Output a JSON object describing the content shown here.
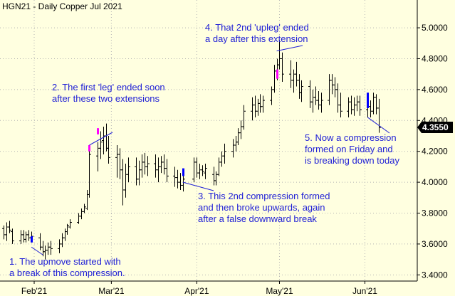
{
  "chart_data": {
    "type": "ohlc",
    "title": "HGN21 - Daily  Copper Jul 2021",
    "ylim": [
      3.36,
      5.18
    ],
    "xlim_days": [
      -12.4,
      139
    ],
    "y_ticks": [
      "5.0000",
      "4.8000",
      "4.6000",
      "4.4000",
      "4.2000",
      "4.0000",
      "3.8000",
      "3.6000",
      "3.4000"
    ],
    "x_ticks": [
      {
        "label": "Feb'21",
        "day": 0
      },
      {
        "label": "Mar'21",
        "day": 28
      },
      {
        "label": "Apr'21",
        "day": 59
      },
      {
        "label": "May'21",
        "day": 89
      },
      {
        "label": "Jun'21",
        "day": 120
      }
    ],
    "last_price": "4.3550",
    "colors": {
      "background": "#ffffe0",
      "bar": "#000000",
      "grid": "#b4b4b4",
      "annotation": "#1f1fd6",
      "extension": "#ff00ff",
      "compression": "#0000ff",
      "price_badge": "#000000"
    },
    "grid": true,
    "bars": [
      {
        "d": -11,
        "o": 3.7,
        "h": 3.72,
        "l": 3.63,
        "c": 3.66
      },
      {
        "d": -10,
        "o": 3.66,
        "h": 3.74,
        "l": 3.62,
        "c": 3.71
      },
      {
        "d": -9,
        "o": 3.71,
        "h": 3.75,
        "l": 3.67,
        "c": 3.69
      },
      {
        "d": -8,
        "o": 3.68,
        "h": 3.7,
        "l": 3.6,
        "c": 3.62
      },
      {
        "d": -5,
        "o": 3.62,
        "h": 3.69,
        "l": 3.6,
        "c": 3.66
      },
      {
        "d": -4,
        "o": 3.66,
        "h": 3.69,
        "l": 3.61,
        "c": 3.63
      },
      {
        "d": -3,
        "o": 3.63,
        "h": 3.68,
        "l": 3.61,
        "c": 3.66
      },
      {
        "d": -2,
        "o": 3.66,
        "h": 3.69,
        "l": 3.62,
        "c": 3.64
      },
      {
        "d": -1,
        "o": 3.64,
        "h": 3.68,
        "l": 3.61,
        "c": 3.65
      },
      {
        "d": 2,
        "o": 3.64,
        "h": 3.67,
        "l": 3.56,
        "c": 3.58
      },
      {
        "d": 3,
        "o": 3.58,
        "h": 3.62,
        "l": 3.52,
        "c": 3.55
      },
      {
        "d": 4,
        "o": 3.55,
        "h": 3.59,
        "l": 3.5,
        "c": 3.56
      },
      {
        "d": 5,
        "o": 3.56,
        "h": 3.61,
        "l": 3.53,
        "c": 3.58
      },
      {
        "d": 6,
        "o": 3.58,
        "h": 3.62,
        "l": 3.53,
        "c": 3.57
      },
      {
        "d": 9,
        "o": 3.57,
        "h": 3.63,
        "l": 3.54,
        "c": 3.6
      },
      {
        "d": 10,
        "o": 3.6,
        "h": 3.67,
        "l": 3.58,
        "c": 3.64
      },
      {
        "d": 11,
        "o": 3.64,
        "h": 3.7,
        "l": 3.62,
        "c": 3.68
      },
      {
        "d": 12,
        "o": 3.68,
        "h": 3.73,
        "l": 3.66,
        "c": 3.72
      },
      {
        "d": 13,
        "o": 3.71,
        "h": 3.76,
        "l": 3.7,
        "c": 3.74
      },
      {
        "d": 16,
        "o": 3.74,
        "h": 3.8,
        "l": 3.73,
        "c": 3.78
      },
      {
        "d": 17,
        "o": 3.78,
        "h": 3.83,
        "l": 3.76,
        "c": 3.81
      },
      {
        "d": 18,
        "o": 3.81,
        "h": 3.86,
        "l": 3.8,
        "c": 3.84
      },
      {
        "d": 19,
        "o": 3.83,
        "h": 3.95,
        "l": 3.82,
        "c": 3.92
      },
      {
        "d": 20,
        "o": 3.92,
        "h": 4.22,
        "l": 3.9,
        "c": 4.18
      },
      {
        "d": 23,
        "o": 4.17,
        "h": 4.26,
        "l": 4.07,
        "c": 4.22
      },
      {
        "d": 24,
        "o": 4.22,
        "h": 4.33,
        "l": 4.15,
        "c": 4.26
      },
      {
        "d": 25,
        "o": 4.27,
        "h": 4.36,
        "l": 4.18,
        "c": 4.3
      },
      {
        "d": 26,
        "o": 4.3,
        "h": 4.38,
        "l": 4.2,
        "c": 4.22
      },
      {
        "d": 27,
        "o": 4.22,
        "h": 4.3,
        "l": 4.12,
        "c": 4.16
      },
      {
        "d": 30,
        "o": 4.16,
        "h": 4.24,
        "l": 4.03,
        "c": 4.18
      },
      {
        "d": 31,
        "o": 4.18,
        "h": 4.22,
        "l": 4.02,
        "c": 4.08
      },
      {
        "d": 32,
        "o": 4.08,
        "h": 4.15,
        "l": 3.85,
        "c": 3.95
      },
      {
        "d": 33,
        "o": 3.95,
        "h": 4.12,
        "l": 3.9,
        "c": 4.05
      },
      {
        "d": 34,
        "o": 4.05,
        "h": 4.16,
        "l": 4.0,
        "c": 4.1
      },
      {
        "d": 37,
        "o": 4.1,
        "h": 4.16,
        "l": 3.98,
        "c": 4.02
      },
      {
        "d": 38,
        "o": 4.02,
        "h": 4.14,
        "l": 3.98,
        "c": 4.08
      },
      {
        "d": 39,
        "o": 4.08,
        "h": 4.18,
        "l": 4.03,
        "c": 4.13
      },
      {
        "d": 40,
        "o": 4.13,
        "h": 4.19,
        "l": 4.05,
        "c": 4.1
      },
      {
        "d": 41,
        "o": 4.1,
        "h": 4.17,
        "l": 4.04,
        "c": 4.12
      },
      {
        "d": 44,
        "o": 4.12,
        "h": 4.18,
        "l": 4.03,
        "c": 4.08
      },
      {
        "d": 45,
        "o": 4.08,
        "h": 4.16,
        "l": 4.0,
        "c": 4.1
      },
      {
        "d": 46,
        "o": 4.1,
        "h": 4.17,
        "l": 4.06,
        "c": 4.13
      },
      {
        "d": 47,
        "o": 4.13,
        "h": 4.18,
        "l": 4.05,
        "c": 4.09
      },
      {
        "d": 48,
        "o": 4.09,
        "h": 4.15,
        "l": 4.0,
        "c": 4.04
      },
      {
        "d": 51,
        "o": 4.04,
        "h": 4.1,
        "l": 3.97,
        "c": 4.03
      },
      {
        "d": 52,
        "o": 4.03,
        "h": 4.08,
        "l": 3.96,
        "c": 4.0
      },
      {
        "d": 53,
        "o": 4.0,
        "h": 4.06,
        "l": 3.95,
        "c": 3.98
      },
      {
        "d": 54,
        "o": 3.98,
        "h": 4.05,
        "l": 3.94,
        "c": 4.02
      },
      {
        "d": 58,
        "o": 4.02,
        "h": 4.16,
        "l": 4.0,
        "c": 4.13
      },
      {
        "d": 59,
        "o": 4.13,
        "h": 4.16,
        "l": 4.03,
        "c": 4.06
      },
      {
        "d": 60,
        "o": 4.06,
        "h": 4.12,
        "l": 4.02,
        "c": 4.08
      },
      {
        "d": 61,
        "o": 4.08,
        "h": 4.11,
        "l": 4.04,
        "c": 4.07
      },
      {
        "d": 62,
        "o": 4.06,
        "h": 4.12,
        "l": 4.02,
        "c": 4.09
      },
      {
        "d": 65,
        "o": 4.05,
        "h": 4.1,
        "l": 3.98,
        "c": 4.01
      },
      {
        "d": 66,
        "o": 4.01,
        "h": 4.07,
        "l": 3.98,
        "c": 4.05
      },
      {
        "d": 67,
        "o": 4.05,
        "h": 4.16,
        "l": 4.04,
        "c": 4.13
      },
      {
        "d": 68,
        "o": 4.13,
        "h": 4.2,
        "l": 4.1,
        "c": 4.17
      },
      {
        "d": 69,
        "o": 4.17,
        "h": 4.25,
        "l": 4.12,
        "c": 4.2
      },
      {
        "d": 72,
        "o": 4.2,
        "h": 4.28,
        "l": 4.16,
        "c": 4.24
      },
      {
        "d": 73,
        "o": 4.24,
        "h": 4.3,
        "l": 4.2,
        "c": 4.26
      },
      {
        "d": 74,
        "o": 4.26,
        "h": 4.35,
        "l": 4.24,
        "c": 4.32
      },
      {
        "d": 75,
        "o": 4.32,
        "h": 4.4,
        "l": 4.28,
        "c": 4.36
      },
      {
        "d": 76,
        "o": 4.36,
        "h": 4.5,
        "l": 4.34,
        "c": 4.46
      },
      {
        "d": 79,
        "o": 4.46,
        "h": 4.55,
        "l": 4.4,
        "c": 4.5
      },
      {
        "d": 80,
        "o": 4.5,
        "h": 4.56,
        "l": 4.42,
        "c": 4.46
      },
      {
        "d": 81,
        "o": 4.46,
        "h": 4.54,
        "l": 4.43,
        "c": 4.51
      },
      {
        "d": 82,
        "o": 4.51,
        "h": 4.57,
        "l": 4.45,
        "c": 4.49
      },
      {
        "d": 83,
        "o": 4.49,
        "h": 4.56,
        "l": 4.45,
        "c": 4.53
      },
      {
        "d": 86,
        "o": 4.53,
        "h": 4.62,
        "l": 4.5,
        "c": 4.6
      },
      {
        "d": 87,
        "o": 4.6,
        "h": 4.76,
        "l": 4.58,
        "c": 4.72
      },
      {
        "d": 88,
        "o": 4.72,
        "h": 4.8,
        "l": 4.66,
        "c": 4.76
      },
      {
        "d": 89,
        "o": 4.76,
        "h": 4.92,
        "l": 4.73,
        "c": 4.8
      },
      {
        "d": 90,
        "o": 4.8,
        "h": 4.84,
        "l": 4.65,
        "c": 4.7
      },
      {
        "d": 93,
        "o": 4.7,
        "h": 4.79,
        "l": 4.61,
        "c": 4.66
      },
      {
        "d": 94,
        "o": 4.66,
        "h": 4.73,
        "l": 4.58,
        "c": 4.7
      },
      {
        "d": 95,
        "o": 4.7,
        "h": 4.78,
        "l": 4.62,
        "c": 4.66
      },
      {
        "d": 96,
        "o": 4.66,
        "h": 4.7,
        "l": 4.54,
        "c": 4.58
      },
      {
        "d": 97,
        "o": 4.58,
        "h": 4.66,
        "l": 4.52,
        "c": 4.62
      },
      {
        "d": 100,
        "o": 4.62,
        "h": 4.66,
        "l": 4.48,
        "c": 4.52
      },
      {
        "d": 101,
        "o": 4.52,
        "h": 4.6,
        "l": 4.45,
        "c": 4.55
      },
      {
        "d": 102,
        "o": 4.55,
        "h": 4.62,
        "l": 4.5,
        "c": 4.53
      },
      {
        "d": 103,
        "o": 4.53,
        "h": 4.59,
        "l": 4.47,
        "c": 4.5
      },
      {
        "d": 104,
        "o": 4.5,
        "h": 4.58,
        "l": 4.45,
        "c": 4.53
      },
      {
        "d": 107,
        "o": 4.53,
        "h": 4.7,
        "l": 4.5,
        "c": 4.66
      },
      {
        "d": 108,
        "o": 4.66,
        "h": 4.7,
        "l": 4.57,
        "c": 4.63
      },
      {
        "d": 109,
        "o": 4.63,
        "h": 4.68,
        "l": 4.55,
        "c": 4.6
      },
      {
        "d": 110,
        "o": 4.6,
        "h": 4.64,
        "l": 4.45,
        "c": 4.5
      },
      {
        "d": 111,
        "o": 4.5,
        "h": 4.58,
        "l": 4.42,
        "c": 4.46
      },
      {
        "d": 114,
        "o": 4.46,
        "h": 4.55,
        "l": 4.42,
        "c": 4.52
      },
      {
        "d": 115,
        "o": 4.52,
        "h": 4.56,
        "l": 4.44,
        "c": 4.47
      },
      {
        "d": 116,
        "o": 4.47,
        "h": 4.55,
        "l": 4.43,
        "c": 4.5
      },
      {
        "d": 117,
        "o": 4.5,
        "h": 4.56,
        "l": 4.46,
        "c": 4.52
      },
      {
        "d": 118,
        "o": 4.52,
        "h": 4.56,
        "l": 4.43,
        "c": 4.47
      },
      {
        "d": 121,
        "o": 4.47,
        "h": 4.53,
        "l": 4.42,
        "c": 4.49
      },
      {
        "d": 122,
        "o": 4.49,
        "h": 4.53,
        "l": 4.42,
        "c": 4.46
      },
      {
        "d": 123,
        "o": 4.46,
        "h": 4.58,
        "l": 4.44,
        "c": 4.55
      },
      {
        "d": 124,
        "o": 4.55,
        "h": 4.57,
        "l": 4.44,
        "c": 4.48
      },
      {
        "d": 125,
        "o": 4.48,
        "h": 4.54,
        "l": 4.32,
        "c": 4.355
      }
    ],
    "highlights": [
      {
        "type": "compression",
        "d": -1,
        "lo": 3.61,
        "hi": 3.65
      },
      {
        "type": "extension",
        "d": 20,
        "lo": 4.2,
        "hi": 4.24
      },
      {
        "type": "extension",
        "d": 23,
        "lo": 4.31,
        "hi": 4.35
      },
      {
        "type": "compression",
        "d": 54,
        "lo": 4.04,
        "hi": 4.09
      },
      {
        "type": "extension",
        "d": 88,
        "lo": 4.67,
        "hi": 4.73
      },
      {
        "type": "compression",
        "d": 121,
        "lo": 4.48,
        "hi": 4.58
      }
    ],
    "annotations": [
      {
        "id": 1,
        "lines": [
          "1. The upmove started with",
          "a break of this compression."
        ],
        "pointer": {
          "d": -1,
          "v": 3.58
        }
      },
      {
        "id": 2,
        "lines": [
          "2. The first 'leg' ended soon",
          "after these two extensions"
        ],
        "pointer": {
          "d": 20,
          "v": 4.24
        }
      },
      {
        "id": 3,
        "lines": [
          "3. This 2nd compression formed",
          "and then broke upwards, again",
          "after a false downward break"
        ],
        "pointer": {
          "d": 54,
          "v": 4.0
        }
      },
      {
        "id": 4,
        "lines": [
          "4. That 2nd 'upleg' ended",
          "a day after this extension"
        ],
        "pointer": {
          "d": 88,
          "v": 4.85
        }
      },
      {
        "id": 5,
        "lines": [
          "5. Now a compression",
          "formed on Friday and",
          "is breaking down today"
        ],
        "pointer": {
          "d": 121,
          "v": 4.42
        }
      }
    ]
  }
}
